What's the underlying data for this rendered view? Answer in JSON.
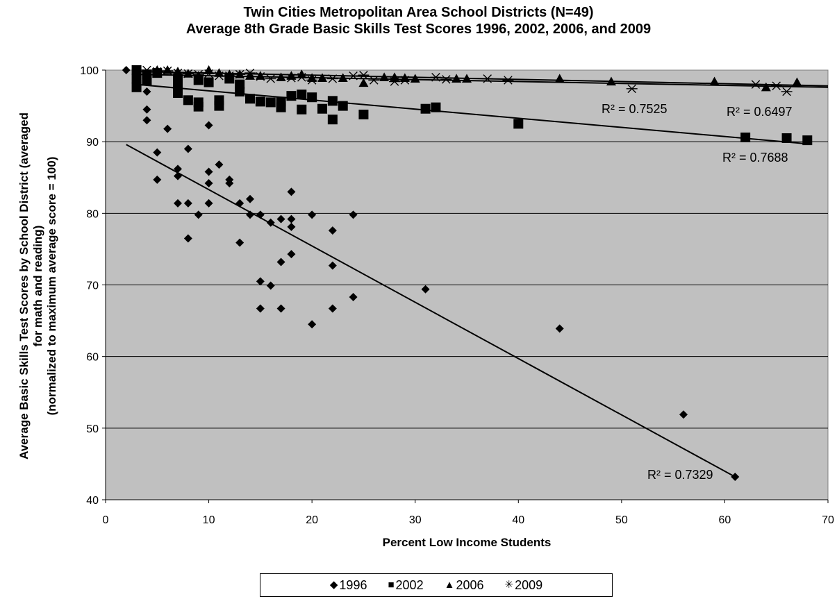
{
  "chart_data": {
    "type": "scatter",
    "title": [
      "Twin Cities Metropolitan Area School Districts (N=49)",
      "Average 8th Grade Basic Skills Test Scores 1996, 2002, 2006, and 2009"
    ],
    "xlabel": "Percent Low Income Students",
    "ylabel": [
      "Average Basic Skills Test Scores by School District (averaged",
      "for math and reading)",
      "(normalized to maximum average score = 100)"
    ],
    "xlim": [
      0,
      70
    ],
    "ylim": [
      40,
      100
    ],
    "xticks": [
      0,
      10,
      20,
      30,
      40,
      50,
      60,
      70
    ],
    "yticks": [
      40,
      50,
      60,
      70,
      80,
      90,
      100
    ],
    "grid": "horizontal",
    "plot_background": "#C0C0C0",
    "legend_position": "bottom",
    "series": [
      {
        "name": "1996",
        "marker": "diamond",
        "symbol": "◆",
        "points": [
          [
            2,
            100
          ],
          [
            4,
            97
          ],
          [
            4,
            94.5
          ],
          [
            4,
            93
          ],
          [
            5,
            88.5
          ],
          [
            5,
            84.7
          ],
          [
            6,
            91.8
          ],
          [
            7,
            86.2
          ],
          [
            7,
            85.2
          ],
          [
            7,
            81.4
          ],
          [
            8,
            89
          ],
          [
            8,
            81.4
          ],
          [
            8,
            76.5
          ],
          [
            9,
            79.8
          ],
          [
            10,
            92.3
          ],
          [
            10,
            85.8
          ],
          [
            10,
            84.2
          ],
          [
            10,
            81.4
          ],
          [
            11,
            86.8
          ],
          [
            12,
            84.7
          ],
          [
            12,
            84.2
          ],
          [
            13,
            81.4
          ],
          [
            13,
            75.9
          ],
          [
            14,
            82
          ],
          [
            14,
            79.8
          ],
          [
            15,
            79.8
          ],
          [
            15,
            70.5
          ],
          [
            15,
            66.7
          ],
          [
            16,
            78.7
          ],
          [
            16,
            69.9
          ],
          [
            17,
            79.2
          ],
          [
            17,
            73.2
          ],
          [
            17,
            66.7
          ],
          [
            18,
            83
          ],
          [
            18,
            79.2
          ],
          [
            18,
            78.1
          ],
          [
            18,
            74.3
          ],
          [
            20,
            79.8
          ],
          [
            20,
            64.5
          ],
          [
            22,
            77.6
          ],
          [
            22,
            72.7
          ],
          [
            22,
            66.7
          ],
          [
            24,
            79.8
          ],
          [
            24,
            68.3
          ],
          [
            31,
            69.4
          ],
          [
            44,
            63.9
          ],
          [
            56,
            51.9
          ],
          [
            61,
            43.2
          ]
        ],
        "trendline": {
          "x": [
            2,
            61
          ],
          "y": [
            89.6,
            43.2
          ],
          "r2_label": "R² = 0.7329"
        }
      },
      {
        "name": "2002",
        "marker": "square",
        "symbol": "■",
        "points": [
          [
            3,
            100
          ],
          [
            3,
            98.8
          ],
          [
            3,
            97.6
          ],
          [
            4,
            99.4
          ],
          [
            4,
            98.5
          ],
          [
            5,
            99.6
          ],
          [
            7,
            98.8
          ],
          [
            7,
            97.5
          ],
          [
            7,
            96.8
          ],
          [
            8,
            95.8
          ],
          [
            9,
            98.6
          ],
          [
            9,
            95.5
          ],
          [
            9,
            94.9
          ],
          [
            10,
            98.3
          ],
          [
            11,
            95.8
          ],
          [
            11,
            95
          ],
          [
            12,
            98.8
          ],
          [
            13,
            98
          ],
          [
            13,
            97
          ],
          [
            14,
            96
          ],
          [
            15,
            95.6
          ],
          [
            16,
            95.5
          ],
          [
            17,
            95.6
          ],
          [
            17,
            94.8
          ],
          [
            18,
            96.4
          ],
          [
            19,
            96.6
          ],
          [
            19,
            94.5
          ],
          [
            20,
            96.2
          ],
          [
            21,
            94.6
          ],
          [
            22,
            95.7
          ],
          [
            22,
            93.1
          ],
          [
            23,
            95
          ],
          [
            25,
            93.8
          ],
          [
            31,
            94.6
          ],
          [
            32,
            94.8
          ],
          [
            40,
            92.5
          ],
          [
            62,
            90.6
          ],
          [
            66,
            90.5
          ],
          [
            68,
            90.2
          ]
        ],
        "trendline": {
          "x": [
            3,
            68
          ],
          "y": [
            98,
            89.7
          ],
          "r2_label": "R² = 0.7688"
        }
      },
      {
        "name": "2006",
        "marker": "triangle",
        "symbol": "▲",
        "points": [
          [
            3,
            100
          ],
          [
            5,
            100
          ],
          [
            6,
            100
          ],
          [
            7,
            99.8
          ],
          [
            8,
            99.5
          ],
          [
            9,
            99.2
          ],
          [
            10,
            100
          ],
          [
            11,
            99.6
          ],
          [
            12,
            99.4
          ],
          [
            13,
            99.4
          ],
          [
            14,
            99.2
          ],
          [
            15,
            99.2
          ],
          [
            17,
            99
          ],
          [
            18,
            99.2
          ],
          [
            19,
            99.4
          ],
          [
            20,
            98.9
          ],
          [
            21,
            98.9
          ],
          [
            23,
            98.9
          ],
          [
            25,
            98.2
          ],
          [
            27,
            99
          ],
          [
            28,
            99
          ],
          [
            29,
            98.9
          ],
          [
            30,
            98.8
          ],
          [
            34,
            98.8
          ],
          [
            35,
            98.8
          ],
          [
            44,
            98.8
          ],
          [
            49,
            98.4
          ],
          [
            59,
            98.4
          ],
          [
            64,
            97.6
          ],
          [
            67,
            98.3
          ]
        ],
        "trendline": {
          "x": [
            3,
            70
          ],
          "y": [
            99.8,
            97.8
          ],
          "r2_label": "R² = 0.6497"
        }
      },
      {
        "name": "2009",
        "marker": "star",
        "symbol": "✳",
        "points": [
          [
            4,
            100
          ],
          [
            5,
            99.8
          ],
          [
            6,
            99.9
          ],
          [
            7,
            99.6
          ],
          [
            8,
            99.5
          ],
          [
            9,
            99.4
          ],
          [
            10,
            99.5
          ],
          [
            11,
            99.2
          ],
          [
            12,
            99.2
          ],
          [
            13,
            99.4
          ],
          [
            14,
            99.6
          ],
          [
            15,
            99.1
          ],
          [
            16,
            98.8
          ],
          [
            18,
            98.9
          ],
          [
            19,
            99
          ],
          [
            20,
            98.6
          ],
          [
            22,
            98.8
          ],
          [
            24,
            99.2
          ],
          [
            25,
            99.3
          ],
          [
            26,
            98.6
          ],
          [
            28,
            98.4
          ],
          [
            29,
            98.6
          ],
          [
            32,
            99
          ],
          [
            33,
            98.7
          ],
          [
            37,
            98.8
          ],
          [
            39,
            98.6
          ],
          [
            51,
            97.4
          ],
          [
            63,
            98
          ],
          [
            65,
            97.8
          ],
          [
            66,
            97
          ]
        ],
        "trendline": {
          "x": [
            3,
            70
          ],
          "y": [
            99.4,
            97.6
          ],
          "r2_label": "R² = 0.7525"
        }
      }
    ]
  }
}
